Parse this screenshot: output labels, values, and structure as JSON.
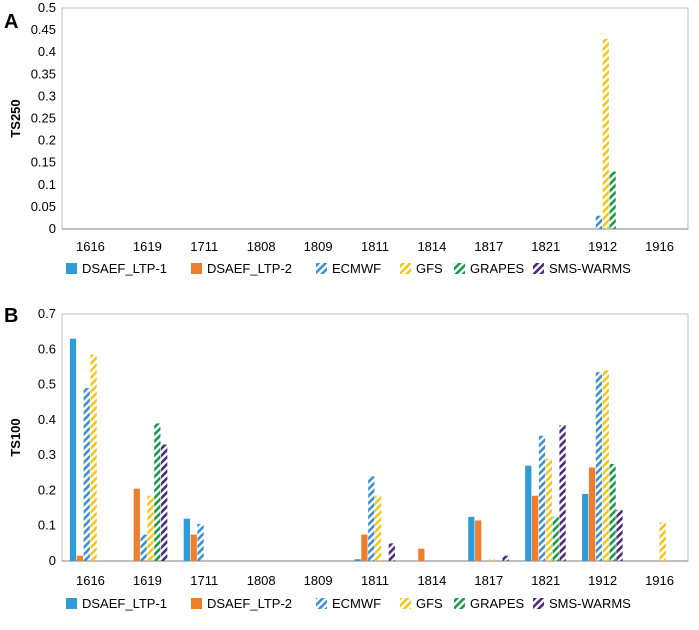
{
  "chart_data": [
    {
      "panel_label": "A",
      "type": "bar",
      "ylabel": "TS250",
      "ylim": [
        0,
        0.5
      ],
      "ytick_step": 0.05,
      "yticks": [
        "0",
        "0.05",
        "0.1",
        "0.15",
        "0.2",
        "0.25",
        "0.3",
        "0.35",
        "0.4",
        "0.45",
        "0.5"
      ],
      "categories": [
        "1616",
        "1619",
        "1711",
        "1808",
        "1809",
        "1811",
        "1814",
        "1817",
        "1821",
        "1912",
        "1916"
      ],
      "series": [
        {
          "name": "DSAEF_LTP-1",
          "color": "#2E9BDA",
          "pattern": "solid",
          "values": [
            0,
            0,
            0,
            0,
            0,
            0,
            0,
            0,
            0,
            0,
            0
          ]
        },
        {
          "name": "DSAEF_LTP-2",
          "color": "#F07F2D",
          "pattern": "solid",
          "values": [
            0,
            0,
            0,
            0,
            0,
            0,
            0,
            0,
            0,
            0,
            0
          ]
        },
        {
          "name": "ECMWF",
          "color": "#3C8FD0",
          "pattern": "hatch",
          "values": [
            0,
            0,
            0,
            0,
            0,
            0,
            0,
            0,
            0,
            0.03,
            0
          ]
        },
        {
          "name": "GFS",
          "color": "#F5C518",
          "pattern": "hatch",
          "values": [
            0,
            0,
            0,
            0,
            0,
            0,
            0,
            0,
            0,
            0.43,
            0
          ]
        },
        {
          "name": "GRAPES",
          "color": "#159A4A",
          "pattern": "hatch",
          "values": [
            0,
            0,
            0,
            0,
            0,
            0,
            0,
            0,
            0,
            0.13,
            0
          ]
        },
        {
          "name": "SMS-WARMS",
          "color": "#4B2A7D",
          "pattern": "hatch",
          "values": [
            0,
            0,
            0,
            0,
            0,
            0,
            0,
            0,
            0,
            0,
            0
          ]
        }
      ]
    },
    {
      "panel_label": "B",
      "type": "bar",
      "ylabel": "TS100",
      "ylim": [
        0,
        0.7
      ],
      "ytick_step": 0.1,
      "yticks": [
        "0",
        "0.1",
        "0.2",
        "0.3",
        "0.4",
        "0.5",
        "0.6",
        "0.7"
      ],
      "categories": [
        "1616",
        "1619",
        "1711",
        "1808",
        "1809",
        "1811",
        "1814",
        "1817",
        "1821",
        "1912",
        "1916"
      ],
      "series": [
        {
          "name": "DSAEF_LTP-1",
          "color": "#2E9BDA",
          "pattern": "solid",
          "values": [
            0.63,
            0,
            0.12,
            0,
            0,
            0.005,
            0,
            0.125,
            0.27,
            0.19,
            0
          ]
        },
        {
          "name": "DSAEF_LTP-2",
          "color": "#F07F2D",
          "pattern": "solid",
          "values": [
            0.015,
            0.205,
            0.075,
            0,
            0,
            0.075,
            0.035,
            0.115,
            0.185,
            0.265,
            0
          ]
        },
        {
          "name": "ECMWF",
          "color": "#3C8FD0",
          "pattern": "hatch",
          "values": [
            0.49,
            0.075,
            0.105,
            0,
            0,
            0.24,
            0,
            0,
            0.355,
            0.535,
            0
          ]
        },
        {
          "name": "GFS",
          "color": "#F5C518",
          "pattern": "hatch",
          "values": [
            0.585,
            0.185,
            0,
            0,
            0,
            0.185,
            0,
            0.005,
            0.29,
            0.54,
            0.11
          ]
        },
        {
          "name": "GRAPES",
          "color": "#159A4A",
          "pattern": "hatch",
          "values": [
            0,
            0.39,
            0,
            0,
            0,
            0,
            0,
            0,
            0.125,
            0.275,
            0
          ]
        },
        {
          "name": "SMS-WARMS",
          "color": "#4B2A7D",
          "pattern": "hatch",
          "values": [
            0,
            0.33,
            0,
            0,
            0,
            0.05,
            0,
            0.015,
            0.385,
            0.145,
            0
          ]
        }
      ]
    }
  ]
}
